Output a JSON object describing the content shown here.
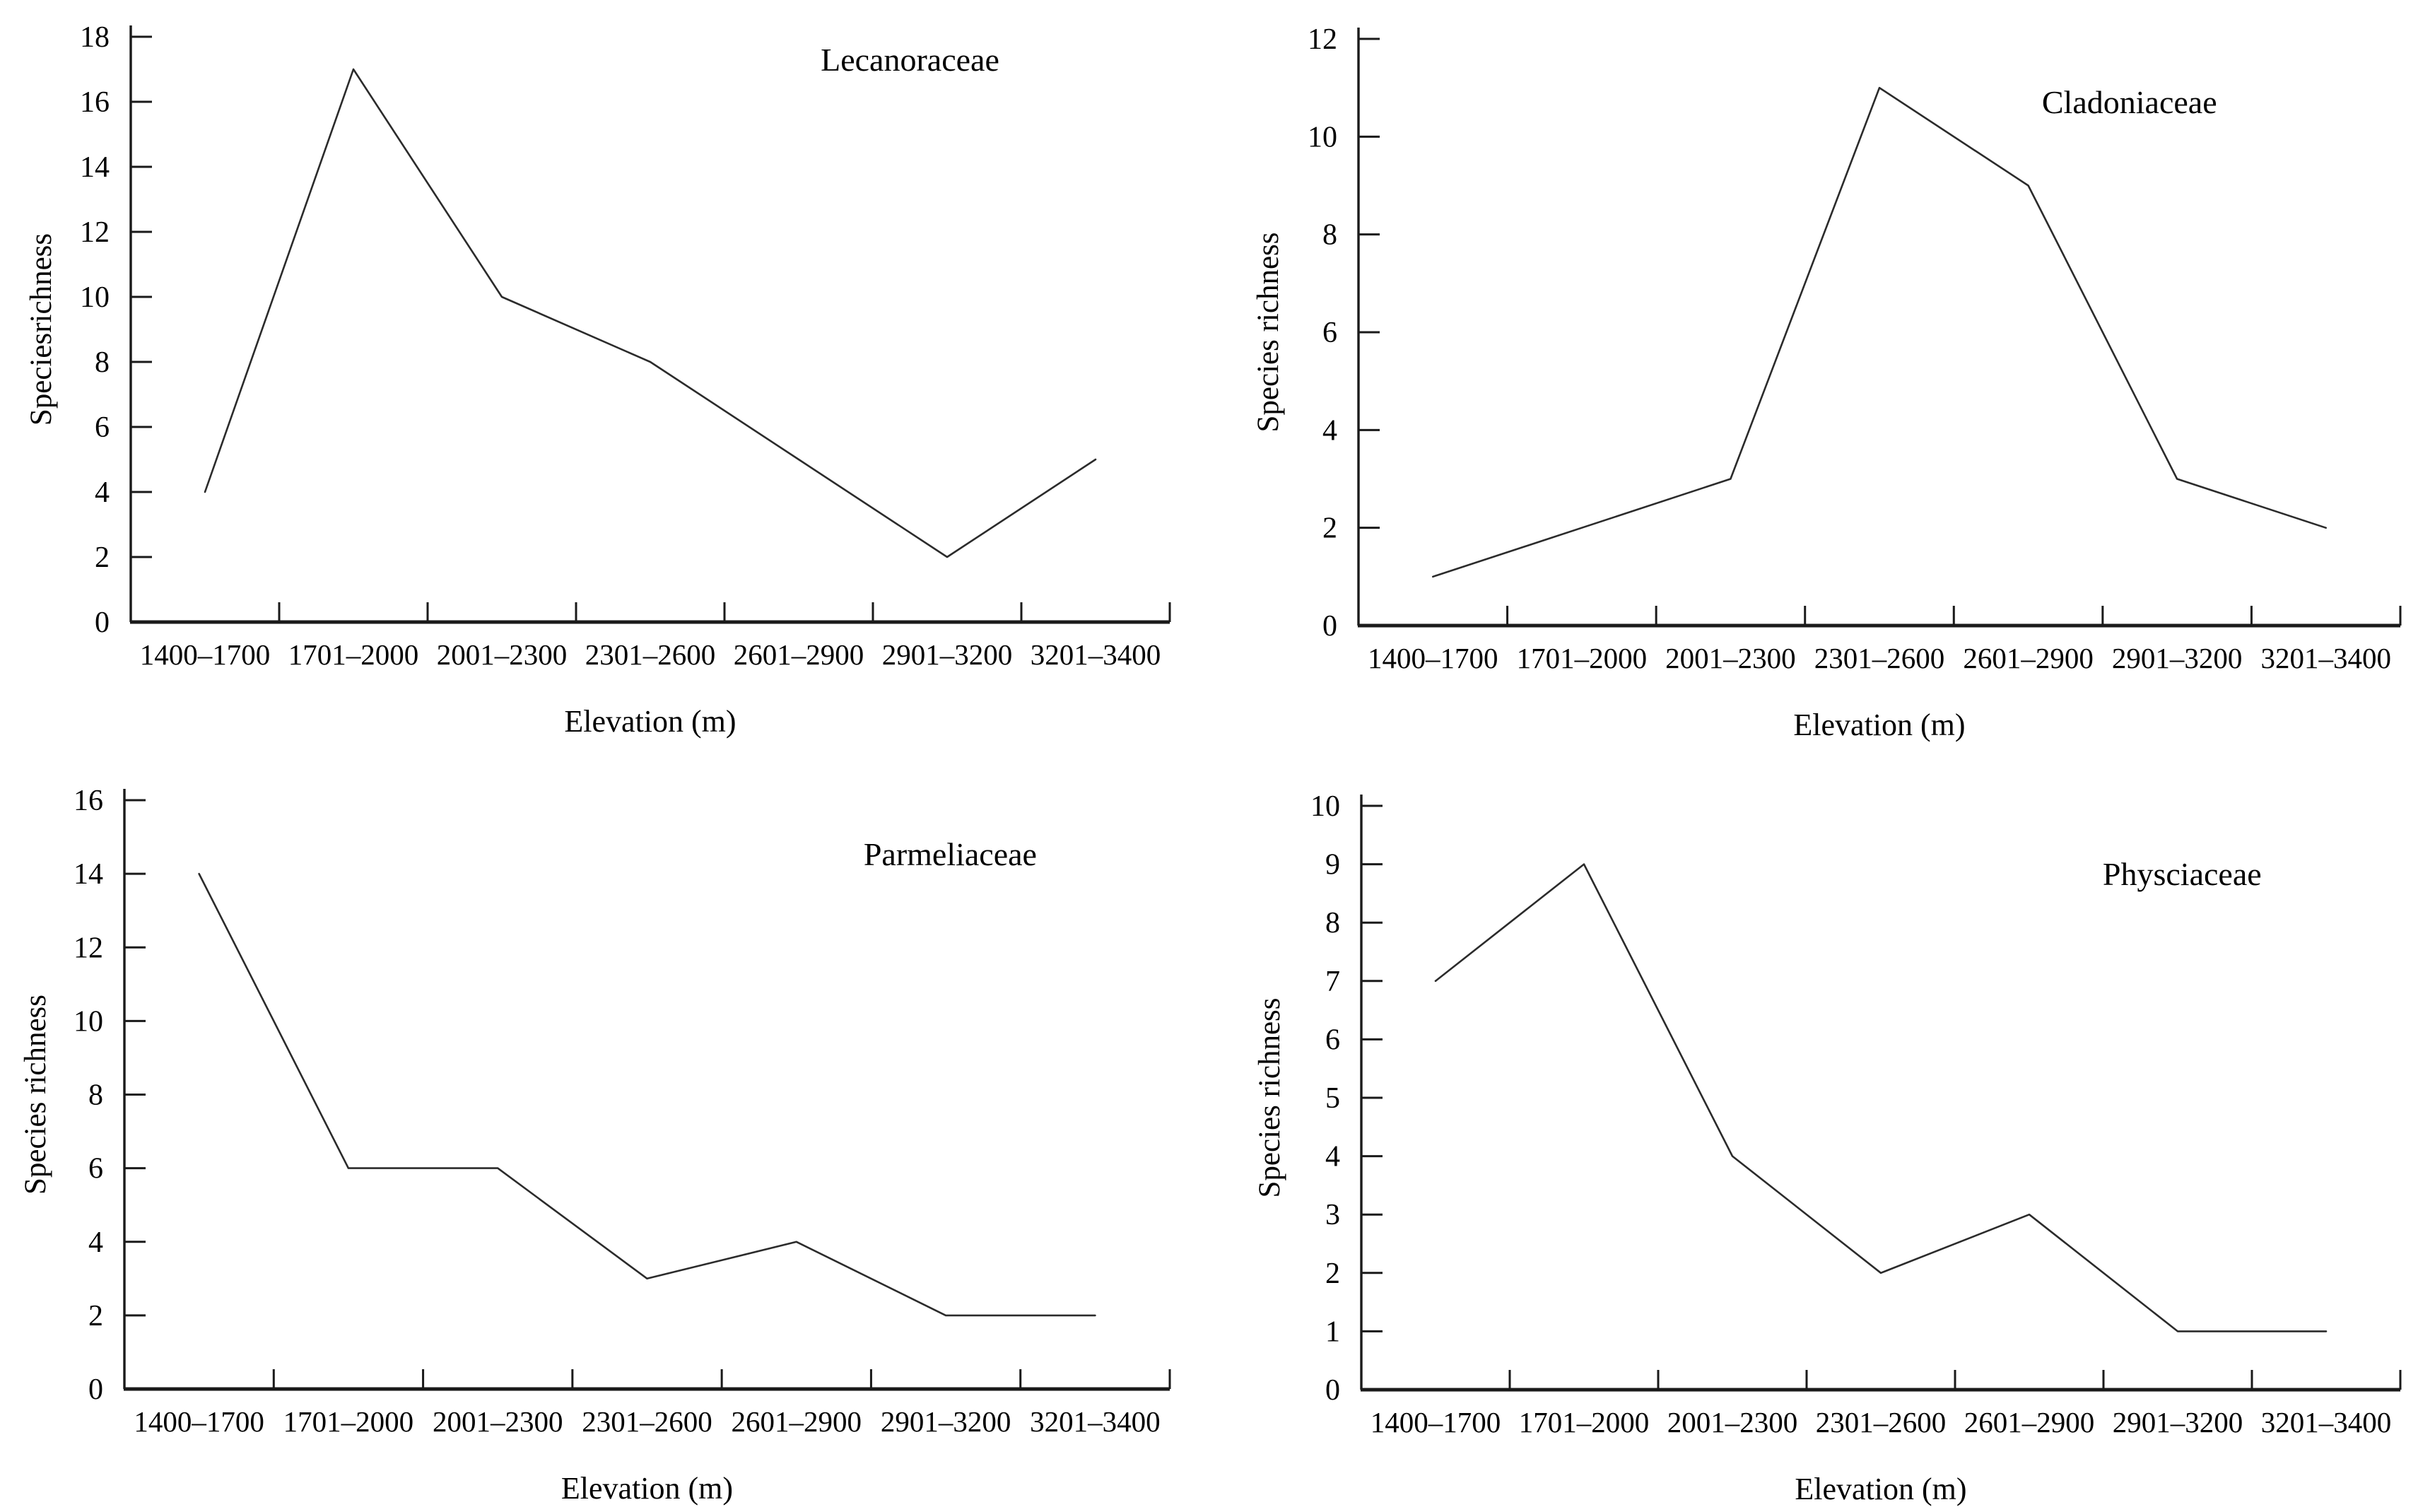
{
  "page": {
    "background_color": "#ffffff",
    "text_color": "#000000",
    "line_color": "#2b2b2b"
  },
  "chart_data": [
    {
      "type": "line",
      "title": "Lecanoraceae",
      "ylabel": "Speciesrichness",
      "xlabel": "Elevation (m)",
      "categories": [
        "1400–1700",
        "1701–2000",
        "2001–2300",
        "2301–2600",
        "2601–2900",
        "2901–3200",
        "3201–3400"
      ],
      "values": [
        4,
        17,
        10,
        8,
        5,
        2,
        5
      ],
      "ylim": [
        0,
        18
      ],
      "ytick_step": 2,
      "grid": false,
      "legend_position": "none",
      "line_color": "#2b2b2b"
    },
    {
      "type": "line",
      "title": "Cladoniaceae",
      "ylabel": "Species richness",
      "xlabel": "Elevation (m)",
      "categories": [
        "1400–1700",
        "1701–2000",
        "2001–2300",
        "2301–2600",
        "2601–2900",
        "2901–3200",
        "3201–3400"
      ],
      "values": [
        1,
        2,
        3,
        11,
        9,
        3,
        2
      ],
      "ylim": [
        0,
        12
      ],
      "ytick_step": 2,
      "grid": false,
      "legend_position": "none",
      "line_color": "#2b2b2b"
    },
    {
      "type": "line",
      "title": "Parmeliaceae",
      "ylabel": "Species richness",
      "xlabel": "Elevation (m)",
      "categories": [
        "1400–1700",
        "1701–2000",
        "2001–2300",
        "2301–2600",
        "2601–2900",
        "2901–3200",
        "3201–3400"
      ],
      "values": [
        14,
        6,
        6,
        3,
        4,
        2,
        2
      ],
      "ylim": [
        0,
        16
      ],
      "ytick_step": 2,
      "grid": false,
      "legend_position": "none",
      "line_color": "#2b2b2b"
    },
    {
      "type": "line",
      "title": "Physciaceae",
      "ylabel": "Species richness",
      "xlabel": "Elevation (m)",
      "categories": [
        "1400–1700",
        "1701–2000",
        "2001–2300",
        "2301–2600",
        "2601–2900",
        "2901–3200",
        "3201–3400"
      ],
      "values": [
        7,
        9,
        4,
        2,
        3,
        1,
        1
      ],
      "ylim": [
        0,
        10
      ],
      "ytick_step": 1,
      "grid": false,
      "legend_position": "none",
      "line_color": "#2b2b2b"
    }
  ]
}
